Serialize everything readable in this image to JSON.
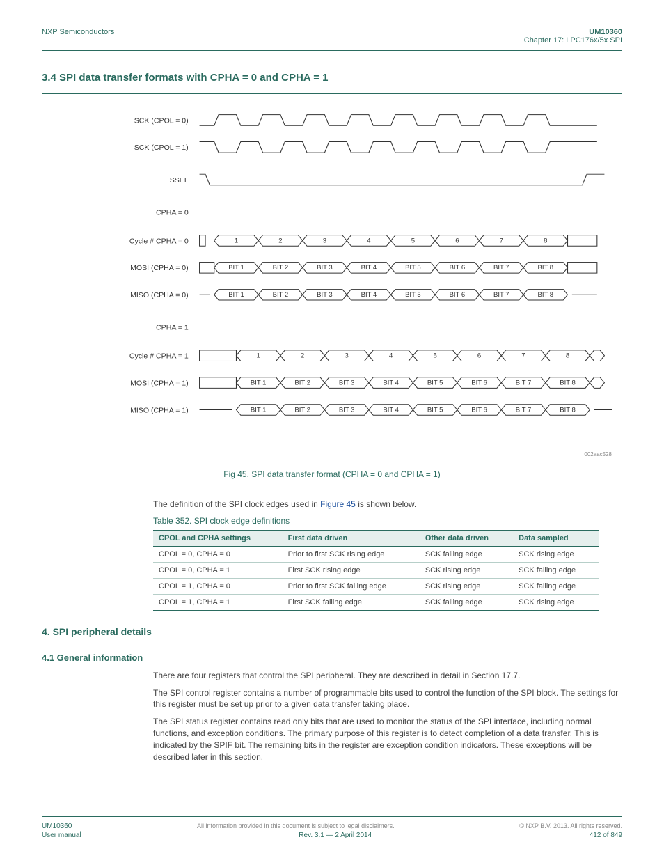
{
  "header": {
    "left": "NXP Semiconductors",
    "right_top": "UM10360",
    "right_bottom": "Chapter 17: LPC176x/5x SPI"
  },
  "section_title": "3.4 SPI data transfer formats with CPHA = 0 and CPHA = 1",
  "diagram": {
    "clock_cells": 8,
    "labels": {
      "sck0": "SCK (CPOL = 0)",
      "sck1": "SCK (CPOL = 1)",
      "ssel": "SSEL",
      "cpha0": "CPHA = 0",
      "cycle0": "Cycle # CPHA = 0",
      "mosi0": "MOSI (CPHA = 0)",
      "miso0": "MISO (CPHA = 0)",
      "cpha1": "CPHA = 1",
      "cycle1": "Cycle # CPHA = 1",
      "mosi1": "MOSI (CPHA = 1)",
      "miso1": "MISO (CPHA = 1)"
    },
    "cycle_values": [
      "1",
      "2",
      "3",
      "4",
      "5",
      "6",
      "7",
      "8"
    ],
    "bit_values": [
      "BIT 1",
      "BIT 2",
      "BIT 3",
      "BIT 4",
      "BIT 5",
      "BIT 6",
      "BIT 7",
      "BIT 8"
    ],
    "footer_id": "002aac528"
  },
  "fig_caption": "Fig 45. SPI data transfer format (CPHA = 0 and CPHA = 1)",
  "para1_prefix": "The definition of the SPI clock edges used in ",
  "para1_link": "Figure 45",
  "para1_suffix": " is shown below.",
  "tbl_caption": "Table 352. SPI clock edge definitions",
  "tbl_headers": [
    "CPOL and CPHA settings",
    "First data driven",
    "Other data driven",
    "Data sampled"
  ],
  "tbl_rows": [
    [
      "CPOL = 0, CPHA = 0",
      "Prior to first SCK rising edge",
      "SCK falling edge",
      "SCK rising edge"
    ],
    [
      "CPOL = 0, CPHA = 1",
      "First SCK rising edge",
      "SCK rising edge",
      "SCK falling edge"
    ],
    [
      "CPOL = 1, CPHA = 0",
      "Prior to first SCK falling edge",
      "SCK rising edge",
      "SCK falling edge"
    ],
    [
      "CPOL = 1, CPHA = 1",
      "First SCK falling edge",
      "SCK falling edge",
      "SCK rising edge"
    ]
  ],
  "sect4_title": "4. SPI peripheral details",
  "sect41_title": "4.1 General information",
  "para2": "There are four registers that control the SPI peripheral. They are described in detail in Section 17.7.",
  "para3": "The SPI control register contains a number of programmable bits used to control the function of the SPI block. The settings for this register must be set up prior to a given data transfer taking place.",
  "para4": "The SPI status register contains read only bits that are used to monitor the status of the SPI interface, including normal functions, and exception conditions. The primary purpose of this register is to detect completion of a data transfer. This is indicated by the SPIF bit. The remaining bits in the register are exception condition indicators. These exceptions will be described later in this section.",
  "footer": {
    "left1": "UM10360",
    "center": "All information provided in this document is subject to legal disclaimers.",
    "right1": "© NXP B.V. 2013. All rights reserved.",
    "left2": "User manual",
    "center2": "Rev. 3.1 — 2 April 2014",
    "right2": "412 of 849"
  },
  "colors": {
    "line": "#333333",
    "accent": "#2a6b5f"
  }
}
